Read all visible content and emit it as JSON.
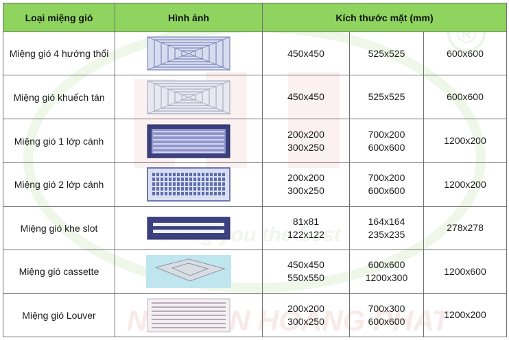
{
  "header": {
    "type_label": "Loại miệng gió",
    "image_label": "Hình ảnh",
    "size_label": "Kích thước mặt (mm)"
  },
  "watermark": {
    "registered_mark": "®",
    "slogan": "Bring you the best",
    "brand": "NGUYEN HOANG PHAT"
  },
  "rows": [
    {
      "name": "Miệng gió 4 hướng thổi",
      "image": "four-way-diffuser-image",
      "s1": [
        "450x450"
      ],
      "s2": [
        "525x525"
      ],
      "s3": [
        "600x600"
      ]
    },
    {
      "name": "Miệng gió khuếch tán",
      "image": "square-diffuser-image",
      "s1": [
        "450x450"
      ],
      "s2": [
        "525x525"
      ],
      "s3": [
        "600x600"
      ]
    },
    {
      "name": "Miệng gió 1 lớp cánh",
      "image": "single-deflection-grille-image",
      "s1": [
        "200x200",
        "300x250"
      ],
      "s2": [
        "700x200",
        "600x600"
      ],
      "s3": [
        "1200x200"
      ]
    },
    {
      "name": "Miệng gió 2 lớp cánh",
      "image": "double-deflection-grille-image",
      "s1": [
        "200x200",
        "300x250"
      ],
      "s2": [
        "700x200",
        "600x600"
      ],
      "s3": [
        "1200x200"
      ]
    },
    {
      "name": "Miệng gió khe slot",
      "image": "slot-diffuser-image",
      "s1": [
        "81x81",
        "122x122"
      ],
      "s2": [
        "164x164",
        "235x235"
      ],
      "s3": [
        "278x278"
      ]
    },
    {
      "name": "Miệng gió cassette",
      "image": "cassette-diffuser-image",
      "s1": [
        "450x450",
        "550x550"
      ],
      "s2": [
        "600x600",
        "1200x300"
      ],
      "s3": [
        "1200x600"
      ]
    },
    {
      "name": "Miệng gió Louver",
      "image": "louver-image",
      "s1": [
        "200x200",
        "300x250"
      ],
      "s2": [
        "700x300",
        "600x600"
      ],
      "s3": [
        "1200x200"
      ]
    }
  ]
}
